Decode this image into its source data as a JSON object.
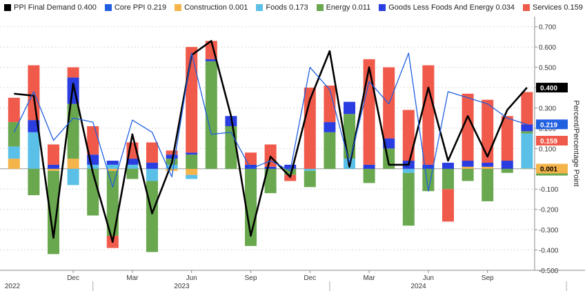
{
  "chart_data": {
    "type": "bar",
    "subtype": "stacked-bar-with-lines",
    "ylabel": "Percent/Percentage Point",
    "ylim": [
      -0.5,
      0.75
    ],
    "yticks": [
      "0.700",
      "0.600",
      "0.500",
      "0.400",
      "0.300",
      "0.200",
      "0.100",
      "0.000",
      "-0.100",
      "-0.200",
      "-0.300",
      "-0.400",
      "-0.500"
    ],
    "x_month_labels": [
      {
        "index": 3,
        "label": "Dec"
      },
      {
        "index": 6,
        "label": "Mar"
      },
      {
        "index": 9,
        "label": "Jun"
      },
      {
        "index": 12,
        "label": "Sep"
      },
      {
        "index": 15,
        "label": "Dec"
      },
      {
        "index": 18,
        "label": "Mar"
      },
      {
        "index": 21,
        "label": "Jun"
      },
      {
        "index": 24,
        "label": "Sep"
      }
    ],
    "x_year_labels": [
      {
        "index": 0,
        "label": "2022"
      },
      {
        "index": 8.5,
        "label": "2023"
      },
      {
        "index": 20.5,
        "label": "2024"
      }
    ],
    "legend": [
      {
        "name": "PPI Final Demand",
        "value": "0.400",
        "color": "#000000"
      },
      {
        "name": "Core PPI",
        "value": "0.219",
        "color": "#1f5fe0"
      },
      {
        "name": "Construction",
        "value": "0.001",
        "color": "#f5b44a"
      },
      {
        "name": "Foods",
        "value": "0.173",
        "color": "#5bc0e8"
      },
      {
        "name": "Energy",
        "value": "0.011",
        "color": "#6aa84f"
      },
      {
        "name": "Goods Less Foods And Energy",
        "value": "0.034",
        "color": "#2a3de0"
      },
      {
        "name": "Services",
        "value": "0.159",
        "color": "#f05a4a"
      }
    ],
    "series": [
      {
        "name": "Construction",
        "color": "#f5b44a",
        "values": [
          0.05,
          0.0,
          -0.01,
          0.05,
          0.0,
          -0.01,
          0.0,
          0.0,
          -0.01,
          -0.03,
          0.0,
          0.0,
          0.0,
          0.0,
          0.0,
          0.0,
          0.0,
          0.0,
          0.0,
          0.0,
          0.0,
          0.0,
          0.0,
          0.01,
          0.01,
          0.0,
          0.001
        ]
      },
      {
        "name": "Foods",
        "color": "#5bc0e8",
        "values": [
          0.06,
          0.18,
          0.0,
          -0.08,
          0.02,
          0.02,
          0.02,
          -0.06,
          0.02,
          -0.02,
          0.0,
          0.0,
          0.0,
          0.0,
          0.0,
          -0.01,
          0.0,
          0.05,
          0.0,
          0.0,
          -0.02,
          0.0,
          0.0,
          0.0,
          0.0,
          0.0,
          0.173
        ]
      },
      {
        "name": "Energy",
        "color": "#6aa84f",
        "values": [
          0.12,
          -0.13,
          -0.41,
          0.27,
          -0.23,
          -0.32,
          -0.05,
          -0.35,
          0.03,
          0.07,
          0.53,
          0.21,
          -0.38,
          -0.12,
          -0.03,
          -0.08,
          0.18,
          0.22,
          -0.07,
          0.1,
          -0.26,
          -0.11,
          -0.1,
          -0.06,
          -0.16,
          -0.02,
          0.011
        ]
      },
      {
        "name": "Goods Less Foods And Energy",
        "color": "#2a3de0",
        "values": [
          0.0,
          0.06,
          0.02,
          0.13,
          0.05,
          0.02,
          0.03,
          0.03,
          0.02,
          0.01,
          0.01,
          0.05,
          0.02,
          0.01,
          0.02,
          0.0,
          0.05,
          0.06,
          0.02,
          0.05,
          0.04,
          0.02,
          0.03,
          0.03,
          0.02,
          0.04,
          0.034
        ]
      },
      {
        "name": "Services",
        "color": "#f05a4a",
        "values": [
          0.12,
          0.27,
          0.1,
          0.05,
          0.14,
          -0.06,
          0.08,
          0.1,
          0.02,
          0.52,
          0.09,
          0.0,
          0.06,
          0.11,
          -0.03,
          0.4,
          0.18,
          0.0,
          0.52,
          0.35,
          0.25,
          0.49,
          -0.16,
          0.33,
          0.31,
          0.22,
          0.159
        ]
      }
    ],
    "lines": [
      {
        "name": "PPI Final Demand",
        "color": "#000000",
        "values": [
          0.37,
          0.36,
          -0.34,
          0.42,
          -0.02,
          -0.36,
          0.17,
          -0.22,
          0.03,
          0.56,
          0.63,
          0.26,
          -0.33,
          0.06,
          -0.04,
          0.34,
          0.58,
          0.01,
          0.5,
          0.02,
          0.02,
          0.4,
          0.04,
          0.26,
          0.06,
          0.29,
          0.4
        ]
      },
      {
        "name": "Core PPI",
        "color": "#1f5fe0",
        "values": [
          0.18,
          0.38,
          0.14,
          0.25,
          0.23,
          -0.09,
          0.24,
          0.18,
          -0.04,
          0.57,
          0.17,
          0.18,
          0.0,
          0.04,
          -0.01,
          0.5,
          0.39,
          0.03,
          0.43,
          0.32,
          0.57,
          -0.11,
          0.38,
          0.35,
          0.32,
          0.25,
          0.219
        ]
      }
    ],
    "right_tags": [
      {
        "label": "0.400",
        "value": 0.4,
        "bg": "#000000",
        "fg": "#ffffff"
      },
      {
        "label": "0.219",
        "value": 0.219,
        "bg": "#1f5fe0",
        "fg": "#ffffff"
      },
      {
        "label": "0.159",
        "value": 0.159,
        "bg": "#f05a4a",
        "fg": "#ffffff"
      },
      {
        "label": "0.011",
        "value": 0.011,
        "bg": "#6aa84f",
        "fg": "#ffffff"
      },
      {
        "label": "0.001",
        "value": 0.001,
        "bg": "#f5b44a",
        "fg": "#000000"
      }
    ]
  }
}
